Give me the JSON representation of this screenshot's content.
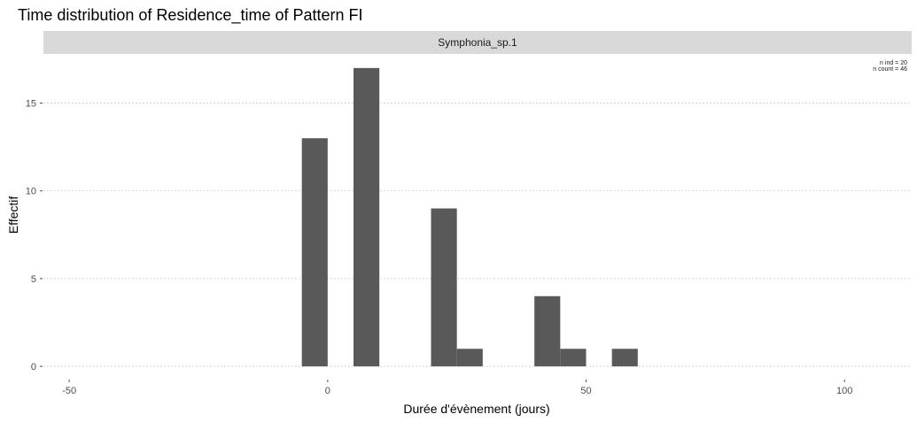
{
  "chart_data": {
    "type": "bar",
    "title": "Time distribution of Residence_time of Pattern FI",
    "facet_label": "Symphonia_sp.1",
    "xlabel": "Durée d'évènement (jours)",
    "ylabel": "Effectif",
    "xlim": [
      -55,
      113
    ],
    "ylim": [
      -0.7,
      17.8
    ],
    "x_ticks": [
      -50,
      0,
      50,
      100
    ],
    "y_ticks": [
      0,
      5,
      10,
      15
    ],
    "grid": "horizontal dotted",
    "bin_width": 5,
    "series": [
      {
        "bins": [
          {
            "x_start": -5,
            "x_end": 0,
            "value": 13
          },
          {
            "x_start": 5,
            "x_end": 10,
            "value": 17
          },
          {
            "x_start": 20,
            "x_end": 25,
            "value": 9
          },
          {
            "x_start": 25,
            "x_end": 30,
            "value": 1
          },
          {
            "x_start": 40,
            "x_end": 45,
            "value": 4
          },
          {
            "x_start": 45,
            "x_end": 50,
            "value": 1
          },
          {
            "x_start": 55,
            "x_end": 60,
            "value": 1
          }
        ]
      }
    ],
    "bar_color": "#595959",
    "annotation": [
      "n ind =  20",
      "n count =  46"
    ]
  }
}
